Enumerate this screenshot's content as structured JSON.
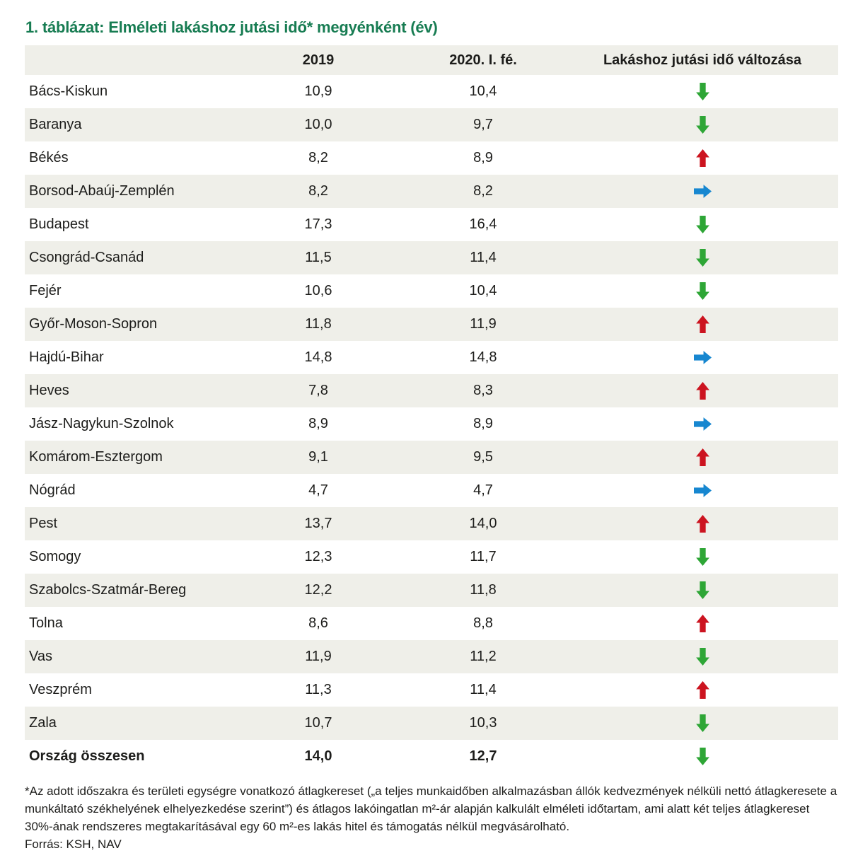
{
  "page": {
    "title": "1. táblázat: Elméleti lakáshoz jutási idő* megyénként (év)",
    "footnote": "*Az adott időszakra és területi egységre vonatkozó átlagkereset („a teljes munkaidőben alkalmazásban állók kedvezmények nélküli nettó átlagkeresete a munkáltató székhelyének elhelyezkedése szerint”) és átlagos lakóingatlan m²-ár alapján kalkulált elméleti időtartam, ami alatt két teljes átlagkereset 30%-ának rendszeres megtakarításával egy 60 m²-es lakás hitel és támogatás nélkül megvásárolható.",
    "source": "Forrás: KSH, NAV"
  },
  "table": {
    "headers": {
      "county": "",
      "y2019": "2019",
      "y2020": "2020. I. fé.",
      "change": "Lakáshoz jutási idő változása"
    },
    "rows": [
      {
        "name": "Bács-Kiskun",
        "v2019": "10,9",
        "v2020": "10,4",
        "change": "down"
      },
      {
        "name": "Baranya",
        "v2019": "10,0",
        "v2020": "9,7",
        "change": "down"
      },
      {
        "name": "Békés",
        "v2019": "8,2",
        "v2020": "8,9",
        "change": "up"
      },
      {
        "name": "Borsod-Abaúj-Zemplén",
        "v2019": "8,2",
        "v2020": "8,2",
        "change": "same"
      },
      {
        "name": "Budapest",
        "v2019": "17,3",
        "v2020": "16,4",
        "change": "down"
      },
      {
        "name": "Csongrád-Csanád",
        "v2019": "11,5",
        "v2020": "11,4",
        "change": "down"
      },
      {
        "name": "Fejér",
        "v2019": "10,6",
        "v2020": "10,4",
        "change": "down"
      },
      {
        "name": "Győr-Moson-Sopron",
        "v2019": "11,8",
        "v2020": "11,9",
        "change": "up"
      },
      {
        "name": "Hajdú-Bihar",
        "v2019": "14,8",
        "v2020": "14,8",
        "change": "same"
      },
      {
        "name": "Heves",
        "v2019": "7,8",
        "v2020": "8,3",
        "change": "up"
      },
      {
        "name": "Jász-Nagykun-Szolnok",
        "v2019": "8,9",
        "v2020": "8,9",
        "change": "same"
      },
      {
        "name": "Komárom-Esztergom",
        "v2019": "9,1",
        "v2020": "9,5",
        "change": "up"
      },
      {
        "name": "Nógrád",
        "v2019": "4,7",
        "v2020": "4,7",
        "change": "same"
      },
      {
        "name": "Pest",
        "v2019": "13,7",
        "v2020": "14,0",
        "change": "up"
      },
      {
        "name": "Somogy",
        "v2019": "12,3",
        "v2020": "11,7",
        "change": "down"
      },
      {
        "name": "Szabolcs-Szatmár-Bereg",
        "v2019": "12,2",
        "v2020": "11,8",
        "change": "down"
      },
      {
        "name": "Tolna",
        "v2019": "8,6",
        "v2020": "8,8",
        "change": "up"
      },
      {
        "name": "Vas",
        "v2019": "11,9",
        "v2020": "11,2",
        "change": "down"
      },
      {
        "name": "Veszprém",
        "v2019": "11,3",
        "v2020": "11,4",
        "change": "up"
      },
      {
        "name": "Zala",
        "v2019": "10,7",
        "v2020": "10,3",
        "change": "down"
      },
      {
        "name": "Ország összesen",
        "v2019": "14,0",
        "v2020": "12,7",
        "change": "down",
        "bold": true
      }
    ]
  },
  "colors": {
    "title": "#177C52",
    "row_alt": "#EFEFE9",
    "text": "#1D1D1B",
    "up": "#CC1420",
    "down": "#2EA636",
    "same": "#1787D0"
  },
  "chart_data": {
    "type": "table",
    "title": "1. táblázat: Elméleti lakáshoz jutási idő* megyénként (év)",
    "categories": [
      "Bács-Kiskun",
      "Baranya",
      "Békés",
      "Borsod-Abaúj-Zemplén",
      "Budapest",
      "Csongrád-Csanád",
      "Fejér",
      "Győr-Moson-Sopron",
      "Hajdú-Bihar",
      "Heves",
      "Jász-Nagykun-Szolnok",
      "Komárom-Esztergom",
      "Nógrád",
      "Pest",
      "Somogy",
      "Szabolcs-Szatmár-Bereg",
      "Tolna",
      "Vas",
      "Veszprém",
      "Zala",
      "Ország összesen"
    ],
    "series": [
      {
        "name": "2019",
        "values": [
          10.9,
          10.0,
          8.2,
          8.2,
          17.3,
          11.5,
          10.6,
          11.8,
          14.8,
          7.8,
          8.9,
          9.1,
          4.7,
          13.7,
          12.3,
          12.2,
          8.6,
          11.9,
          11.3,
          10.7,
          14.0
        ]
      },
      {
        "name": "2020. I. fé.",
        "values": [
          10.4,
          9.7,
          8.9,
          8.2,
          16.4,
          11.4,
          10.4,
          11.9,
          14.8,
          8.3,
          8.9,
          9.5,
          4.7,
          14.0,
          11.7,
          11.8,
          8.8,
          11.2,
          11.4,
          10.3,
          12.7
        ]
      }
    ],
    "change_direction": [
      "down",
      "down",
      "up",
      "same",
      "down",
      "down",
      "down",
      "up",
      "same",
      "up",
      "same",
      "up",
      "same",
      "up",
      "down",
      "down",
      "up",
      "down",
      "up",
      "down",
      "down"
    ],
    "unit": "év",
    "legend_position": "none",
    "grid": false
  }
}
